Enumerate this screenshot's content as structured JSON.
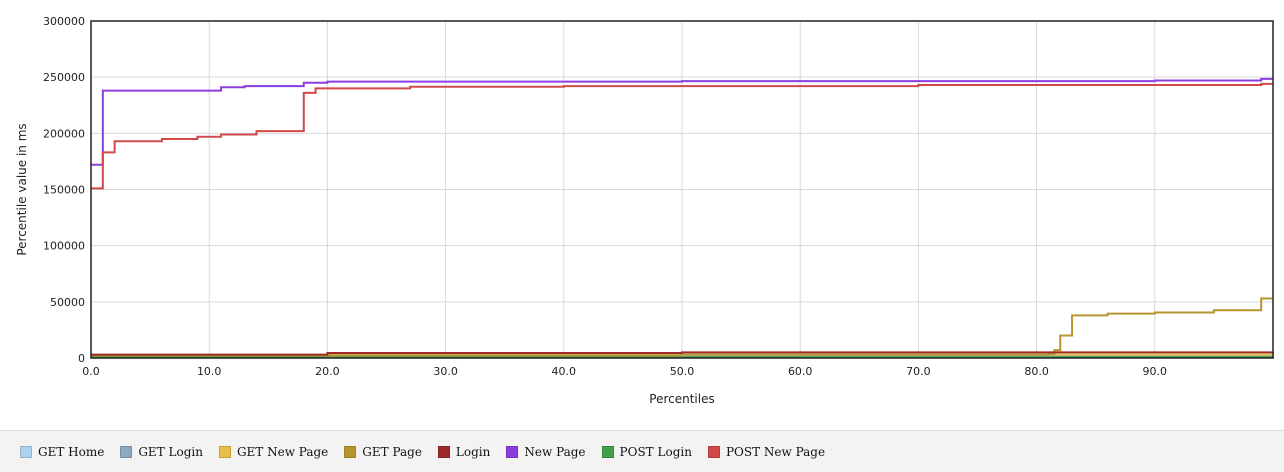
{
  "chart_data": {
    "type": "line",
    "title": "",
    "xlabel": "Percentiles",
    "ylabel": "Percentile value in ms",
    "xlim": [
      0,
      100
    ],
    "ylim": [
      0,
      300000
    ],
    "x_ticks": [
      "0.0",
      "10.0",
      "20.0",
      "30.0",
      "40.0",
      "50.0",
      "60.0",
      "70.0",
      "80.0",
      "90.0"
    ],
    "y_ticks": [
      "0",
      "50000",
      "100000",
      "150000",
      "200000",
      "250000",
      "300000"
    ],
    "grid": true,
    "legend_position": "bottom",
    "step": true,
    "series": [
      {
        "name": "GET Home",
        "color": "#aed2f0",
        "points": [
          [
            0,
            1200
          ],
          [
            20,
            1500
          ],
          [
            50,
            1800
          ],
          [
            100,
            2200
          ]
        ]
      },
      {
        "name": "GET Login",
        "color": "#8ea9c0",
        "points": [
          [
            0,
            800
          ],
          [
            20,
            1000
          ],
          [
            60,
            1200
          ],
          [
            100,
            1500
          ]
        ]
      },
      {
        "name": "GET New Page",
        "color": "#e8c047",
        "points": [
          [
            0,
            2000
          ],
          [
            20,
            2500
          ],
          [
            50,
            3000
          ],
          [
            100,
            3500
          ]
        ]
      },
      {
        "name": "GET Page",
        "color": "#b8962e",
        "points": [
          [
            0,
            2000
          ],
          [
            20,
            2500
          ],
          [
            50,
            3000
          ],
          [
            81,
            3500
          ],
          [
            81.5,
            7000
          ],
          [
            82,
            20000
          ],
          [
            83,
            38000
          ],
          [
            86,
            39500
          ],
          [
            90,
            40500
          ],
          [
            95,
            42500
          ],
          [
            99,
            53000
          ],
          [
            100,
            53000
          ]
        ]
      },
      {
        "name": "Login",
        "color": "#9e2b2b",
        "points": [
          [
            0,
            3000
          ],
          [
            20,
            4500
          ],
          [
            50,
            5000
          ],
          [
            100,
            5500
          ]
        ]
      },
      {
        "name": "New Page",
        "color": "#8a3ee0",
        "points": [
          [
            0,
            172000
          ],
          [
            1,
            238000
          ],
          [
            11,
            241000
          ],
          [
            13,
            242000
          ],
          [
            18,
            245000
          ],
          [
            20,
            246000
          ],
          [
            30,
            246000
          ],
          [
            50,
            246500
          ],
          [
            90,
            247000
          ],
          [
            99,
            248500
          ],
          [
            100,
            248500
          ]
        ]
      },
      {
        "name": "POST Login",
        "color": "#43a047",
        "points": [
          [
            0,
            500
          ],
          [
            50,
            700
          ],
          [
            100,
            900
          ]
        ]
      },
      {
        "name": "POST New Page",
        "color": "#d04a4a",
        "points": [
          [
            0,
            151000
          ],
          [
            1,
            183000
          ],
          [
            2,
            193000
          ],
          [
            6,
            195000
          ],
          [
            9,
            197000
          ],
          [
            11,
            199000
          ],
          [
            14,
            202000
          ],
          [
            18,
            236000
          ],
          [
            19,
            240000
          ],
          [
            27,
            241500
          ],
          [
            40,
            242000
          ],
          [
            70,
            243000
          ],
          [
            99,
            244000
          ],
          [
            100,
            244000
          ]
        ]
      }
    ]
  }
}
